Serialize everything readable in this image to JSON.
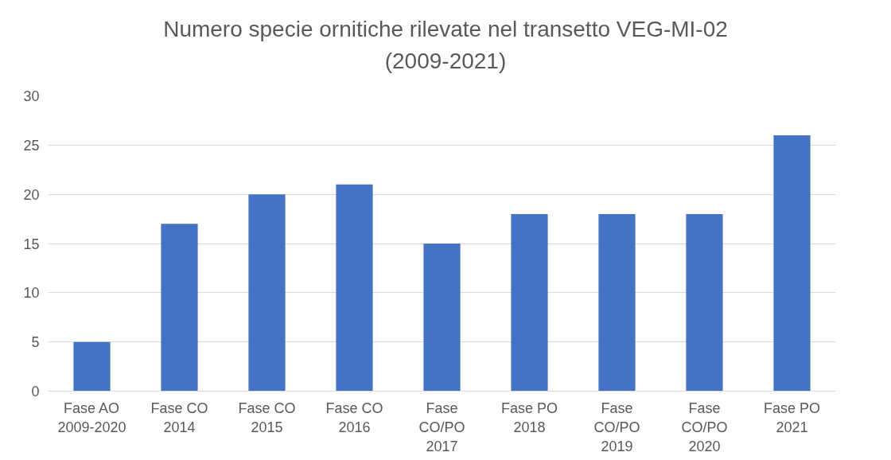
{
  "chart_data": {
    "type": "bar",
    "title": "Numero specie ornitiche rilevate nel transetto VEG-MI-02\n(2009-2021)",
    "categories": [
      "Fase AO\n2009-2020",
      "Fase CO\n2014",
      "Fase CO\n2015",
      "Fase CO\n2016",
      "Fase\nCO/PO\n2017",
      "Fase PO\n2018",
      "Fase\nCO/PO\n2019",
      "Fase\nCO/PO\n2020",
      "Fase PO\n2021"
    ],
    "values": [
      5,
      17,
      20,
      21,
      15,
      18,
      18,
      18,
      26
    ],
    "color": "#4472c4",
    "ylim": [
      0,
      30
    ],
    "yticks": [
      0,
      5,
      10,
      15,
      20,
      25,
      30
    ],
    "grid": "y"
  }
}
